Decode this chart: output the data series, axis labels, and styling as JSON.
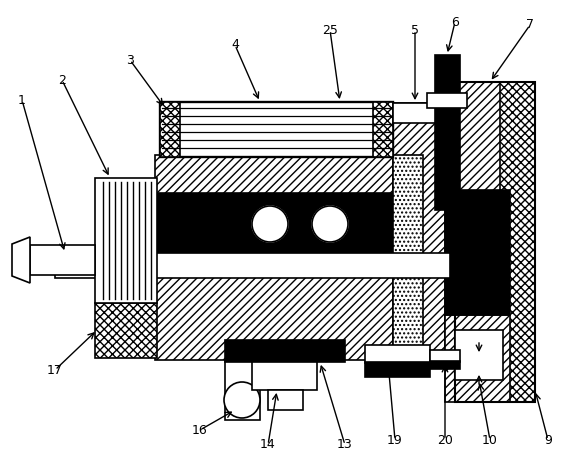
{
  "fig_width": 5.71,
  "fig_height": 4.58,
  "dpi": 100,
  "bg_color": "#ffffff",
  "lc": "#000000",
  "lw": 1.2,
  "fs": 9
}
